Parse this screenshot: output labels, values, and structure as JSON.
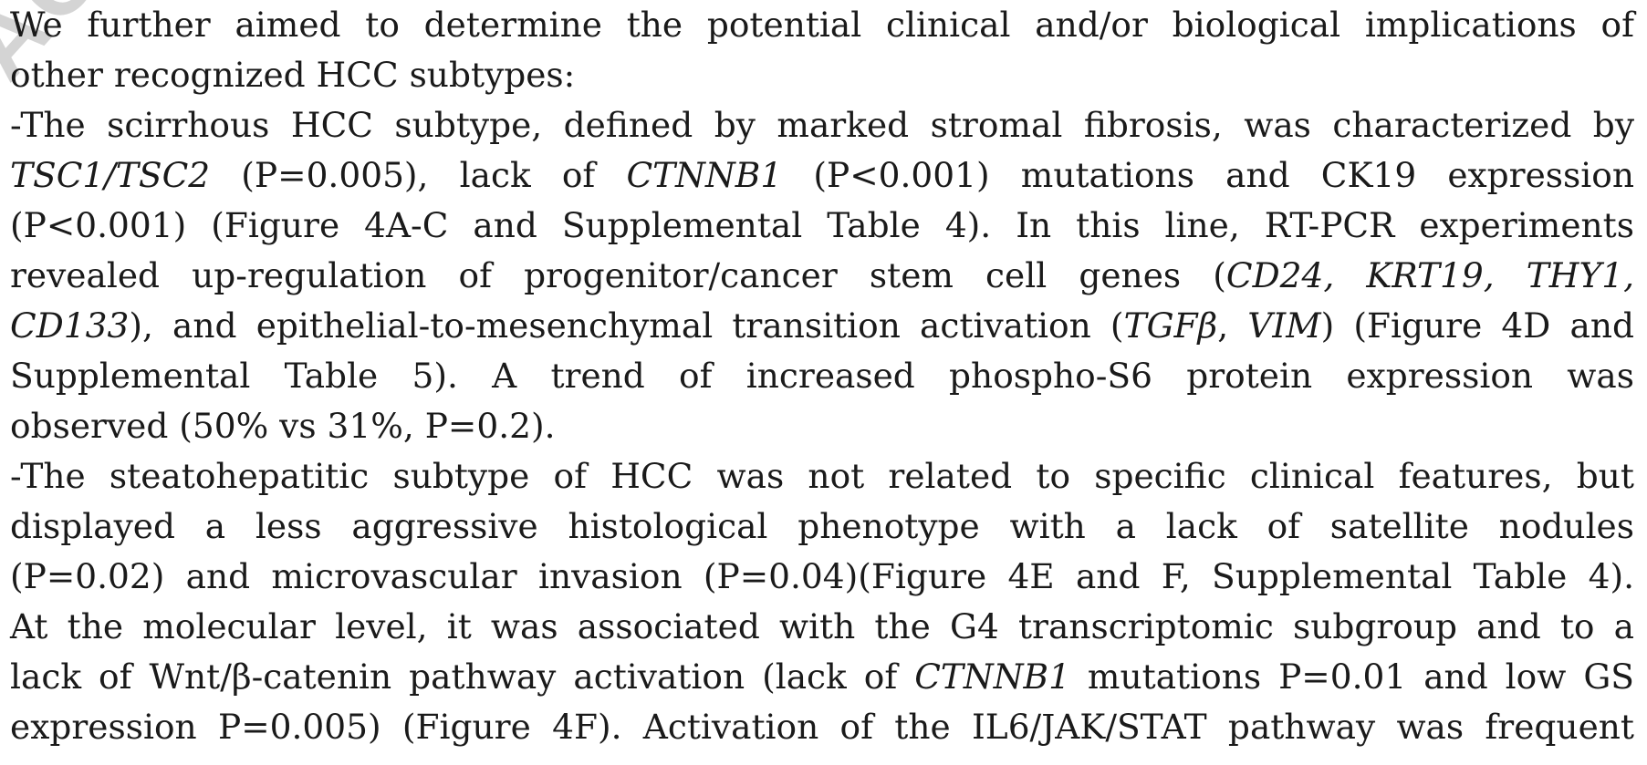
{
  "watermark": "ACCEPTED",
  "lines": [
    {
      "align": "justify",
      "segments": [
        {
          "text": "We further aimed to determine the potential clinical and/or biological implications of"
        }
      ]
    },
    {
      "align": "left",
      "segments": [
        {
          "text": "other recognized HCC subtypes:"
        }
      ]
    },
    {
      "align": "justify",
      "segments": [
        {
          "text": "-The scirrhous HCC subtype, defined by marked stromal fibrosis, was characterized by"
        }
      ]
    },
    {
      "align": "justify",
      "segments": [
        {
          "text": "TSC1/TSC2",
          "italic": true
        },
        {
          "text": " (P=0.005), lack of "
        },
        {
          "text": "CTNNB1",
          "italic": true
        },
        {
          "text": " (P<0.001) mutations and CK19 expression"
        }
      ]
    },
    {
      "align": "justify",
      "segments": [
        {
          "text": "(P<0.001) (Figure 4A-C and Supplemental Table 4). In this line, RT-PCR experiments"
        }
      ]
    },
    {
      "align": "justify",
      "segments": [
        {
          "text": "revealed up-regulation of progenitor/cancer stem cell genes ("
        },
        {
          "text": "CD24, KRT19, THY1,",
          "italic": true
        }
      ]
    },
    {
      "align": "justify",
      "segments": [
        {
          "text": "CD133",
          "italic": true
        },
        {
          "text": "), and epithelial-to-mesenchymal transition activation ("
        },
        {
          "text": "TGFβ",
          "italic": true
        },
        {
          "text": ", "
        },
        {
          "text": "VIM",
          "italic": true
        },
        {
          "text": ") (Figure 4D and"
        }
      ]
    },
    {
      "align": "justify",
      "segments": [
        {
          "text": "Supplemental Table 5). A trend of increased phospho-S6 protein expression was"
        }
      ]
    },
    {
      "align": "left",
      "segments": [
        {
          "text": "observed (50% vs 31%, P=0.2)."
        }
      ]
    },
    {
      "align": "justify",
      "segments": [
        {
          "text": "-The steatohepatitic subtype of HCC was not related to specific clinical features, but"
        }
      ]
    },
    {
      "align": "justify",
      "segments": [
        {
          "text": "displayed a less aggressive histological phenotype with a lack of satellite nodules"
        }
      ]
    },
    {
      "align": "justify",
      "segments": [
        {
          "text": "(P=0.02) and microvascular invasion (P=0.04)(Figure 4E and F, Supplemental Table 4)."
        }
      ]
    },
    {
      "align": "justify",
      "segments": [
        {
          "text": "At the molecular level, it was associated with the G4 transcriptomic subgroup and to a"
        }
      ]
    },
    {
      "align": "justify",
      "segments": [
        {
          "text": "lack of Wnt/β-catenin pathway activation (lack of "
        },
        {
          "text": "CTNNB1",
          "italic": true
        },
        {
          "text": " mutations P=0.01 and low GS"
        }
      ]
    },
    {
      "align": "justify",
      "segments": [
        {
          "text": "expression P=0.005) (Figure 4F). Activation of the IL6/JAK/STAT pathway was frequent"
        }
      ]
    }
  ]
}
